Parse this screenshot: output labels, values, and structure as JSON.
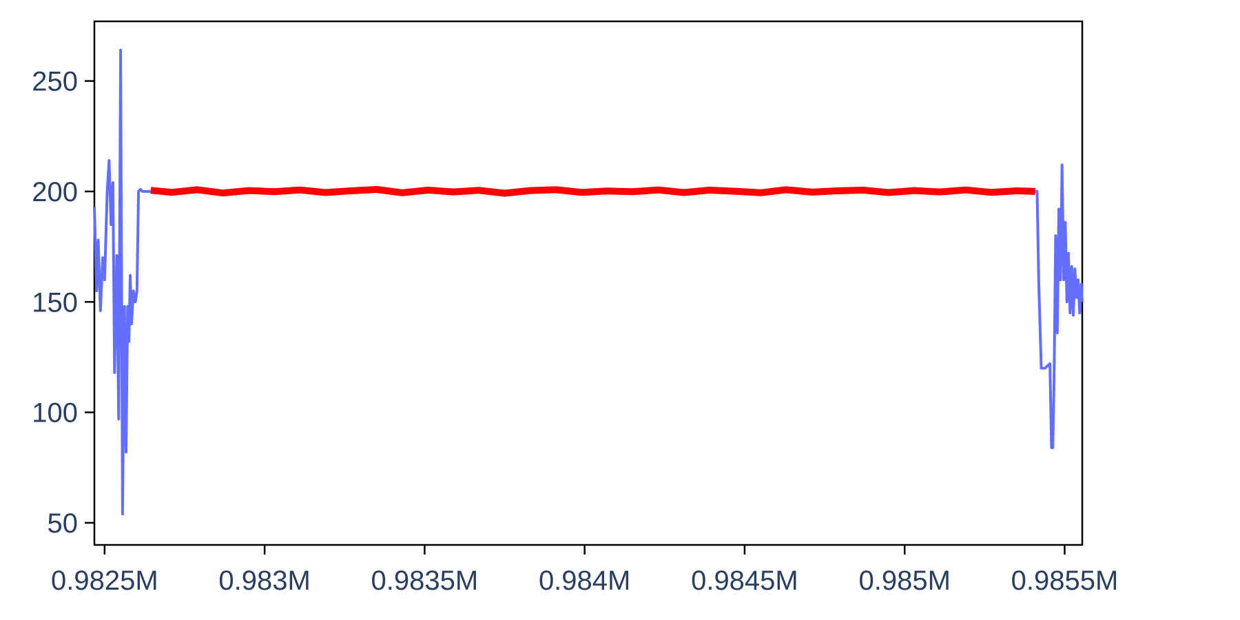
{
  "chart_data": {
    "type": "line",
    "title": "",
    "xlabel": "",
    "ylabel": "",
    "xlim": [
      982468,
      985555
    ],
    "ylim": [
      40,
      277
    ],
    "grid": false,
    "legend": "none",
    "x_ticks": [
      {
        "value": 982500,
        "label": "0.9825M"
      },
      {
        "value": 983000,
        "label": "0.983M"
      },
      {
        "value": 983500,
        "label": "0.9835M"
      },
      {
        "value": 984000,
        "label": "0.984M"
      },
      {
        "value": 984500,
        "label": "0.9845M"
      },
      {
        "value": 985000,
        "label": "0.985M"
      },
      {
        "value": 985500,
        "label": "0.9855M"
      }
    ],
    "y_ticks": [
      {
        "value": 50,
        "label": "50"
      },
      {
        "value": 100,
        "label": "100"
      },
      {
        "value": 150,
        "label": "150"
      },
      {
        "value": 200,
        "label": "200"
      },
      {
        "value": 250,
        "label": "250"
      }
    ],
    "series": [
      {
        "color": "#636efa",
        "x": [
          982468,
          982475,
          982480,
          982487,
          982494,
          982500,
          982508,
          982514,
          982520,
          982526,
          982531,
          982538,
          982544,
          982550,
          982556,
          982562,
          982567,
          982572,
          982576,
          982580,
          982584,
          982590,
          982596,
          982601,
          982606,
          982612,
          982618,
          982623,
          982628,
          982634,
          982638,
          982641,
          982644,
          null,
          985408,
          985414,
          985419,
          985427,
          985438,
          985446,
          985454,
          985459,
          985463,
          985467,
          985472,
          985477,
          985482,
          985487,
          985492,
          985497,
          985502,
          985507,
          985512,
          985517,
          985522,
          985527,
          985532,
          985537,
          985542,
          985547,
          985552,
          985555
        ],
        "y": [
          193,
          155,
          178,
          146,
          170,
          160,
          200,
          214,
          185,
          204,
          118,
          171,
          97,
          264,
          54,
          148,
          82,
          148,
          132,
          162,
          140,
          155,
          150,
          155,
          200,
          201,
          200,
          200,
          200,
          200,
          200,
          200,
          200,
          null,
          200,
          200,
          160,
          120,
          120,
          121,
          122,
          84,
          84,
          115,
          180,
          136,
          192,
          160,
          212,
          160,
          186,
          150,
          172,
          145,
          166,
          144,
          165,
          152,
          160,
          145,
          158,
          150
        ]
      },
      {
        "color": "#ff0000",
        "x": [
          982644,
          982710,
          982790,
          982870,
          982950,
          983030,
          983110,
          983190,
          983270,
          983350,
          983430,
          983510,
          983590,
          983670,
          983750,
          983830,
          983910,
          983990,
          984070,
          984150,
          984230,
          984310,
          984390,
          984470,
          984550,
          984630,
          984710,
          984790,
          984870,
          984950,
          985030,
          985110,
          985190,
          985270,
          985350,
          985408
        ],
        "y": [
          200.5,
          199.6,
          200.8,
          199.3,
          200.4,
          199.9,
          200.7,
          199.5,
          200.3,
          200.9,
          199.4,
          200.6,
          199.8,
          200.5,
          199.2,
          200.4,
          200.8,
          199.6,
          200.2,
          199.9,
          200.7,
          199.5,
          200.6,
          200.1,
          199.4,
          200.8,
          199.7,
          200.3,
          200.6,
          199.5,
          200.4,
          199.8,
          200.7,
          199.6,
          200.3,
          200.0
        ]
      }
    ]
  }
}
